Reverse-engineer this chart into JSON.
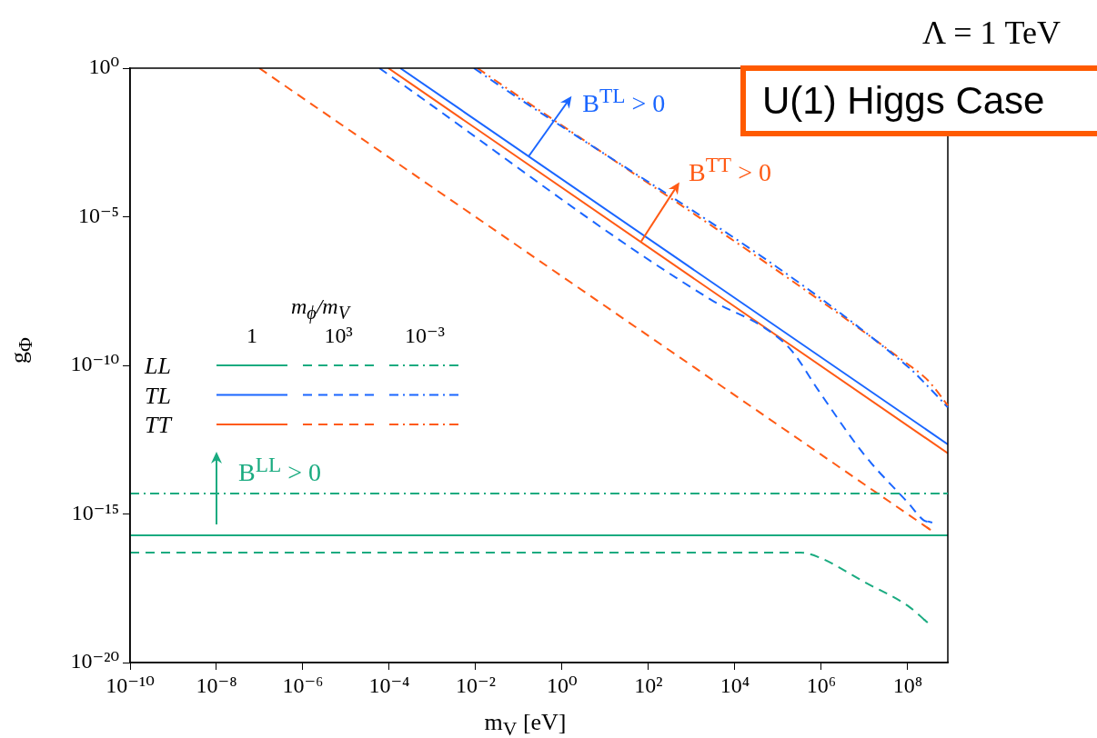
{
  "chart_data": {
    "type": "line",
    "title": "U(1) Higgs Case",
    "subtitle": "Λ = 1 TeV",
    "xlabel": "m$_{V}$ [eV]",
    "ylabel": "g$_{Φ}$",
    "legend_title": "m$_{ϕ}$/m$_{V}$",
    "log": "xy",
    "grid": false,
    "legend": "left",
    "xlim": [
      1e-10,
      850000000.0
    ],
    "ylim": [
      1e-20,
      1
    ],
    "xticks": [
      {
        "value": 1e-10,
        "label": "10⁻¹⁰"
      },
      {
        "value": 1e-08,
        "label": "10⁻⁸"
      },
      {
        "value": 1e-06,
        "label": "10⁻⁶"
      },
      {
        "value": 0.0001,
        "label": "10⁻⁴"
      },
      {
        "value": 0.01,
        "label": "10⁻²"
      },
      {
        "value": 1,
        "label": "10⁰"
      },
      {
        "value": 100.0,
        "label": "10²"
      },
      {
        "value": 10000.0,
        "label": "10⁴"
      },
      {
        "value": 1000000.0,
        "label": "10⁶"
      },
      {
        "value": 100000000.0,
        "label": "10⁸"
      }
    ],
    "yticks": [
      {
        "value": 1e-20,
        "label": "10⁻²⁰"
      },
      {
        "value": 1e-15,
        "label": "10⁻¹⁵"
      },
      {
        "value": 1e-10,
        "label": "10⁻¹⁰"
      },
      {
        "value": 1e-05,
        "label": "10⁻⁵"
      },
      {
        "value": 1,
        "label": "10⁰"
      }
    ],
    "annotations": [
      {
        "text": "B$^{TL}$ > 0",
        "x": 0.17,
        "y": 0.0011
      },
      {
        "text": "B$^{TT}$ > 0",
        "x": 68,
        "y": 1.5e-06
      },
      "B$^{LL}$ > 0",
      "1",
      "10³",
      "10⁻³"
    ],
    "series": [
      {
        "name": "LL",
        "color": "#1aab80",
        "line_style": "solid",
        "x": [
          1e-10,
          850000000.0
        ],
        "values": [
          1.9e-16,
          1.9e-16
        ]
      },
      {
        "color": "#1aab80",
        "line_style": "dashed",
        "x": [
          1e-10,
          330000.0,
          870000.0,
          9800000.0,
          110000000.0,
          290000000.0
        ],
        "values": [
          5e-17,
          5e-17,
          3.5e-17,
          5.2e-18,
          7.4e-19,
          2.2e-19
        ]
      },
      {
        "color": "#1aab80",
        "line_style": "dashdot",
        "x": [
          1e-10,
          850000000.0
        ],
        "values": [
          4.9e-15,
          4.9e-15
        ]
      },
      {
        "name": "TL",
        "color": "#1a66ff",
        "line_style": "solid",
        "x": [
          0.00018,
          850000000.0
        ],
        "values": [
          1,
          2.2e-13
        ]
      },
      {
        "color": "#1a66ff",
        "line_style": "dashed",
        "x": [
          5.9e-05,
          3300.0,
          47000.0,
          200000.0,
          870000.0,
          9800000.0,
          110000000.0,
          230000000.0,
          370000000.0
        ],
        "values": [
          1,
          1.4e-08,
          1.9e-09,
          3.3e-10,
          1.4e-11,
          1e-13,
          2.1e-15,
          6.3e-16,
          5.1e-16
        ]
      },
      {
        "color": "#1a66ff",
        "line_style": "dashdot",
        "x": [
          0.0091,
          110000000.0,
          290000000.0,
          850000000.0
        ],
        "values": [
          1,
          8.1e-11,
          2e-11,
          3.9e-12
        ]
      },
      {
        "name": "TT",
        "color": "#ff5a14",
        "line_style": "solid",
        "x": [
          9.5e-05,
          850000000.0
        ],
        "values": [
          1,
          1.1e-13
        ]
      },
      {
        "color": "#ff5a14",
        "line_style": "dashed",
        "x": [
          9.8e-08,
          340000000.0
        ],
        "values": [
          1,
          2.9e-16
        ]
      },
      {
        "color": "#ff5a14",
        "line_style": "dashdot",
        "x": [
          0.011,
          110000000.0,
          290000000.0,
          850000000.0
        ],
        "values": [
          1,
          1e-10,
          3.2e-11,
          4.5e-12
        ]
      }
    ]
  }
}
